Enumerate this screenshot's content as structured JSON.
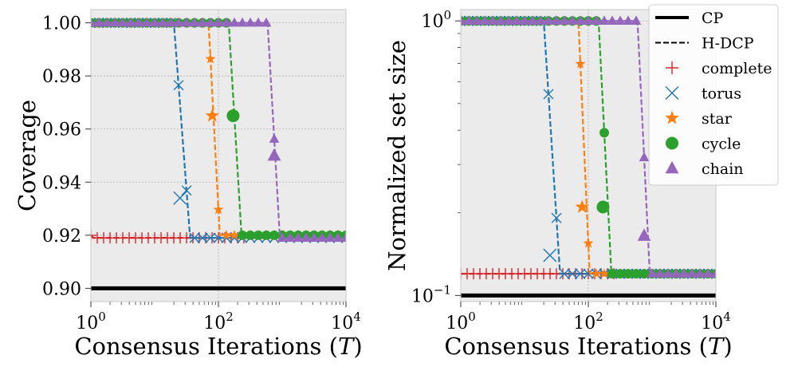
{
  "figure": {
    "legend": {
      "entries": [
        {
          "label": "CP",
          "style": "solid"
        },
        {
          "label": "H-DCP",
          "style": "dashed"
        },
        {
          "label": "complete",
          "marker": "plus",
          "color": "#d62728"
        },
        {
          "label": "torus",
          "marker": "x",
          "color": "#1f77b4"
        },
        {
          "label": "star",
          "marker": "star",
          "color": "#ff7f0e"
        },
        {
          "label": "cycle",
          "marker": "circle",
          "color": "#2ca02c"
        },
        {
          "label": "chain",
          "marker": "triangle",
          "color": "#9467bd"
        }
      ]
    }
  },
  "chart_data": [
    {
      "type": "line",
      "xlabel": "Consensus Iterations (",
      "xlabel_var": "T",
      "xlabel_close": ")",
      "ylabel": "Coverage",
      "xscale": "log",
      "xlim": [
        1,
        10000
      ],
      "ylim": [
        0.895,
        1.005
      ],
      "xticks": [
        {
          "base": "10",
          "exp": "0",
          "value": 1
        },
        {
          "base": "10",
          "exp": "2",
          "value": 100
        },
        {
          "base": "10",
          "exp": "4",
          "value": 10000
        }
      ],
      "yticks": [
        "0.90",
        "0.92",
        "0.94",
        "0.96",
        "0.98",
        "1.00"
      ],
      "cp_value": 0.9,
      "series": [
        {
          "name": "complete",
          "color": "#d62728",
          "marker": "plus",
          "ramp": [
            1,
            1.1
          ],
          "start": 0.92,
          "end": 0.919,
          "big_marker_at": null
        },
        {
          "name": "torus",
          "color": "#1f77b4",
          "marker": "x",
          "ramp": [
            20,
            36
          ],
          "start": 1.0,
          "end": 0.919,
          "big_marker_at": 25,
          "big_value": 0.934
        },
        {
          "name": "star",
          "color": "#ff7f0e",
          "marker": "star",
          "ramp": [
            70,
            105
          ],
          "start": 1.0,
          "end": 0.92,
          "big_marker_at": 80,
          "big_value": 0.965
        },
        {
          "name": "cycle",
          "color": "#2ca02c",
          "marker": "circle",
          "ramp": [
            145,
            230
          ],
          "start": 1.0,
          "end": 0.92,
          "big_marker_at": 170,
          "big_value": 0.965
        },
        {
          "name": "chain",
          "color": "#9467bd",
          "marker": "triangle",
          "ramp": [
            590,
            920
          ],
          "start": 1.0,
          "end": 0.919,
          "big_marker_at": 750,
          "big_value": 0.95
        }
      ]
    },
    {
      "type": "line",
      "xlabel": "Consensus Iterations (",
      "xlabel_var": "T",
      "xlabel_close": ")",
      "ylabel": "Normalized set size",
      "xscale": "log",
      "yscale": "log",
      "xlim": [
        1,
        10000
      ],
      "ylim": [
        0.095,
        1.1
      ],
      "xticks": [
        {
          "base": "10",
          "exp": "0",
          "value": 1
        },
        {
          "base": "10",
          "exp": "2",
          "value": 100
        },
        {
          "base": "10",
          "exp": "4",
          "value": 10000
        }
      ],
      "yticks": [
        {
          "base": "10",
          "exp": "0",
          "value": 1
        },
        {
          "base": "10",
          "exp": "−1",
          "value": 0.1
        }
      ],
      "cp_value": 0.1,
      "series": [
        {
          "name": "complete",
          "color": "#d62728",
          "marker": "plus",
          "ramp": [
            1,
            1.1
          ],
          "start": 0.12,
          "end": 0.12,
          "big_marker_at": null
        },
        {
          "name": "torus",
          "color": "#1f77b4",
          "marker": "x",
          "ramp": [
            20,
            36
          ],
          "start": 1.0,
          "end": 0.12,
          "big_marker_at": 25,
          "big_value": 0.14
        },
        {
          "name": "star",
          "color": "#ff7f0e",
          "marker": "star",
          "ramp": [
            70,
            105
          ],
          "start": 1.0,
          "end": 0.12,
          "big_marker_at": 80,
          "big_value": 0.21
        },
        {
          "name": "cycle",
          "color": "#2ca02c",
          "marker": "circle",
          "ramp": [
            145,
            230
          ],
          "start": 1.0,
          "end": 0.12,
          "big_marker_at": 170,
          "big_value": 0.21
        },
        {
          "name": "chain",
          "color": "#9467bd",
          "marker": "triangle",
          "ramp": [
            590,
            920
          ],
          "start": 1.0,
          "end": 0.12,
          "big_marker_at": 750,
          "big_value": 0.165
        }
      ]
    }
  ]
}
